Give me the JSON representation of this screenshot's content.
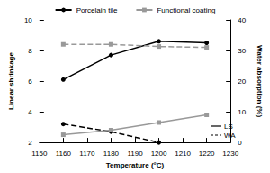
{
  "chart_data": {
    "type": "line",
    "x_label": "Temperature (°C)",
    "y_label": "Linear shrinkage",
    "y2_label": "Water absorption (%)",
    "x": [
      1160,
      1180,
      1200,
      1220
    ],
    "xlim": [
      1150,
      1230
    ],
    "xticks": [
      1150,
      1160,
      1170,
      1180,
      1190,
      1200,
      1210,
      1220,
      1230
    ],
    "ylim": [
      2,
      10
    ],
    "yticks": [
      2,
      4,
      6,
      8,
      10
    ],
    "y2lim": [
      0,
      40
    ],
    "y2ticks": [
      0,
      10,
      20,
      30,
      40
    ],
    "grid": false,
    "legend": "top",
    "series": [
      {
        "name": "Porcelain tile",
        "color": "#000000",
        "marker": "circle",
        "line_style": "solid",
        "values": [
          6.1,
          7.7,
          8.6,
          8.5
        ]
      },
      {
        "name": "Porcelain tile",
        "color": "#000000",
        "marker": "circle",
        "line_style": "dashed",
        "axis": "y2",
        "values": [
          6,
          3.5,
          0,
          null
        ]
      },
      {
        "name": "Functional coating",
        "color": "#999999",
        "marker": "square",
        "line_style": "solid",
        "values": [
          2.5,
          2.8,
          3.3,
          3.8
        ]
      },
      {
        "name": "Functional coating",
        "color": "#999999",
        "marker": "square",
        "line_style": "dashed",
        "axis": "y2",
        "values": [
          32,
          32,
          31.3,
          31
        ]
      }
    ],
    "line_style_legend": [
      {
        "label": "LS",
        "line_style": "solid"
      },
      {
        "label": "WA",
        "line_style": "dashed"
      }
    ]
  }
}
